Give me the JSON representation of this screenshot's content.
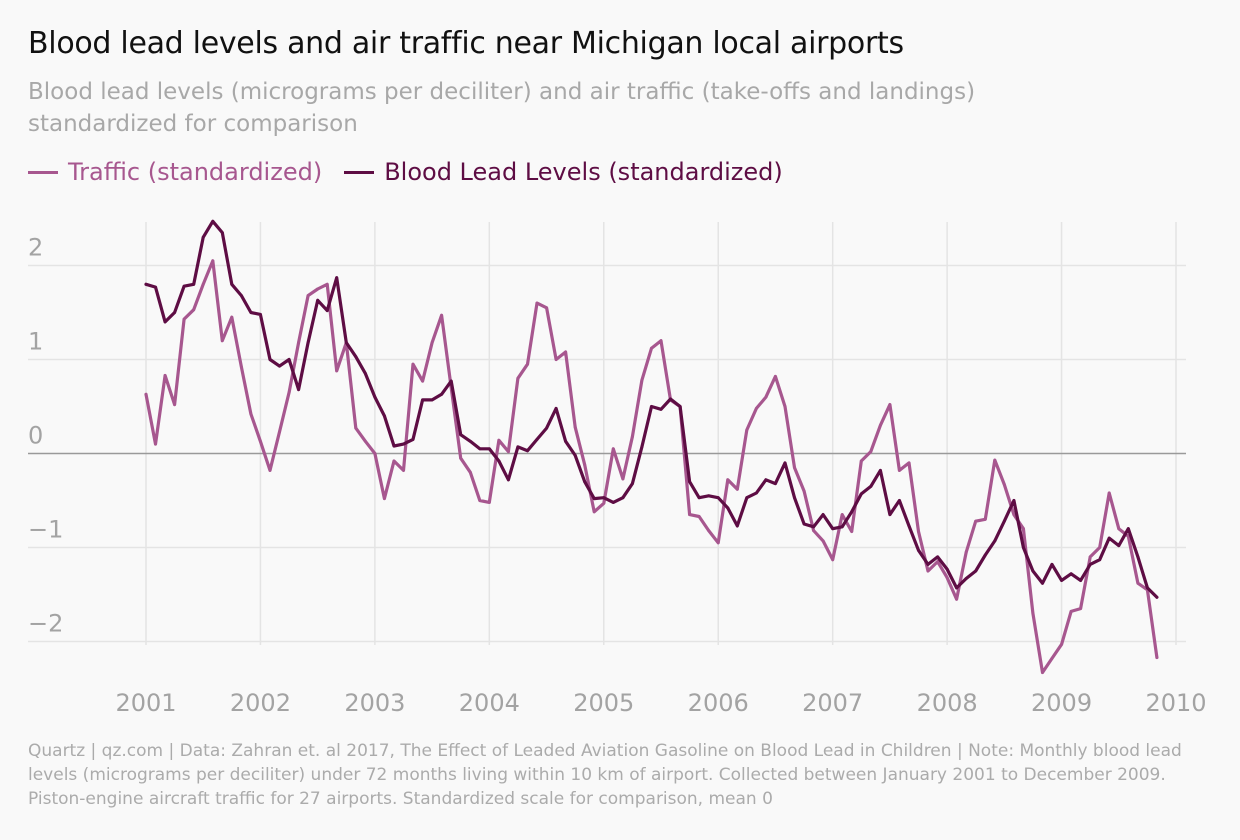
{
  "title": "Blood lead levels and air traffic near Michigan local airports",
  "subtitle": "Blood lead levels (micrograms per deciliter) and air traffic (take-offs and landings) standardized for comparison",
  "footer": "Quartz | qz.com | Data: Zahran et. al 2017, The Effect of Leaded Aviation Gasoline on Blood Lead in Children | Note: Monthly blood lead levels (micrograms per deciliter) under 72 months living within 10 km of airport. Collected between January 2001 to December 2009. Piston-engine aircraft traffic for 27 airports. Standardized scale for comparison, mean 0",
  "colors": {
    "traffic": "#a7578f",
    "lead": "#5e0d44",
    "grid": "#e4e4e4",
    "zero": "#9a9a9a"
  },
  "chart_data": {
    "type": "line",
    "title": "Blood lead levels and air traffic near Michigan local airports",
    "xlim": [
      2001,
      2010
    ],
    "ylim": [
      -2.2,
      2.4
    ],
    "x_ticks": [
      2001,
      2002,
      2003,
      2004,
      2005,
      2006,
      2007,
      2008,
      2009,
      2010
    ],
    "x_tick_labels": [
      "2001",
      "2002",
      "2003",
      "2004",
      "2005",
      "2006",
      "2007",
      "2008",
      "2009",
      "2010"
    ],
    "y_ticks": [
      2,
      1,
      0,
      -1,
      -2
    ],
    "y_tick_labels": [
      "2",
      "1",
      "0",
      "−1",
      "−2"
    ],
    "grid": true,
    "legend_position": "top-left",
    "series": [
      {
        "name": "Traffic (standardized)",
        "color": "#a7578f",
        "start": "2001-01",
        "step": "month",
        "values": [
          0.63,
          0.1,
          0.83,
          0.52,
          1.43,
          1.53,
          1.8,
          2.05,
          1.2,
          1.45,
          0.92,
          0.42,
          0.13,
          -0.18,
          0.23,
          0.65,
          1.18,
          1.68,
          1.75,
          1.8,
          0.88,
          1.18,
          0.27,
          0.13,
          0.0,
          -0.48,
          -0.08,
          -0.18,
          0.95,
          0.77,
          1.18,
          1.47,
          0.7,
          -0.05,
          -0.2,
          -0.5,
          -0.52,
          0.14,
          0.02,
          0.8,
          0.95,
          1.6,
          1.55,
          1.0,
          1.08,
          0.28,
          -0.12,
          -0.62,
          -0.53,
          0.05,
          -0.27,
          0.18,
          0.78,
          1.12,
          1.2,
          0.57,
          0.5,
          -0.65,
          -0.67,
          -0.82,
          -0.95,
          -0.28,
          -0.38,
          0.25,
          0.48,
          0.6,
          0.82,
          0.5,
          -0.15,
          -0.4,
          -0.82,
          -0.93,
          -1.13,
          -0.65,
          -0.83,
          -0.08,
          0.02,
          0.3,
          0.52,
          -0.18,
          -0.1,
          -0.83,
          -1.25,
          -1.15,
          -1.32,
          -1.55,
          -1.05,
          -0.72,
          -0.7,
          -0.07,
          -0.33,
          -0.65,
          -0.8,
          -1.7,
          -2.33,
          -2.18,
          -2.03,
          -1.68,
          -1.65,
          -1.1,
          -1.0,
          -0.42,
          -0.8,
          -0.88,
          -1.38,
          -1.45,
          -2.17
        ]
      },
      {
        "name": "Blood Lead Levels (standardized)",
        "color": "#5e0d44",
        "start": "2001-01",
        "step": "month",
        "values": [
          1.8,
          1.77,
          1.4,
          1.5,
          1.78,
          1.8,
          2.3,
          2.47,
          2.35,
          1.8,
          1.68,
          1.5,
          1.48,
          1.0,
          0.93,
          1.0,
          0.68,
          1.18,
          1.63,
          1.52,
          1.87,
          1.18,
          1.03,
          0.85,
          0.6,
          0.4,
          0.08,
          0.1,
          0.15,
          0.57,
          0.57,
          0.63,
          0.77,
          0.2,
          0.13,
          0.05,
          0.05,
          -0.08,
          -0.28,
          0.07,
          0.03,
          0.15,
          0.27,
          0.48,
          0.13,
          -0.02,
          -0.3,
          -0.48,
          -0.47,
          -0.52,
          -0.47,
          -0.32,
          0.07,
          0.5,
          0.47,
          0.58,
          0.5,
          -0.3,
          -0.47,
          -0.45,
          -0.47,
          -0.58,
          -0.77,
          -0.47,
          -0.42,
          -0.28,
          -0.32,
          -0.1,
          -0.47,
          -0.75,
          -0.78,
          -0.65,
          -0.8,
          -0.78,
          -0.62,
          -0.43,
          -0.35,
          -0.18,
          -0.65,
          -0.5,
          -0.77,
          -1.03,
          -1.18,
          -1.1,
          -1.23,
          -1.43,
          -1.33,
          -1.25,
          -1.08,
          -0.93,
          -0.72,
          -0.5,
          -1.0,
          -1.25,
          -1.38,
          -1.18,
          -1.35,
          -1.28,
          -1.35,
          -1.18,
          -1.13,
          -0.9,
          -0.98,
          -0.8,
          -1.1,
          -1.43,
          -1.53
        ]
      }
    ]
  }
}
